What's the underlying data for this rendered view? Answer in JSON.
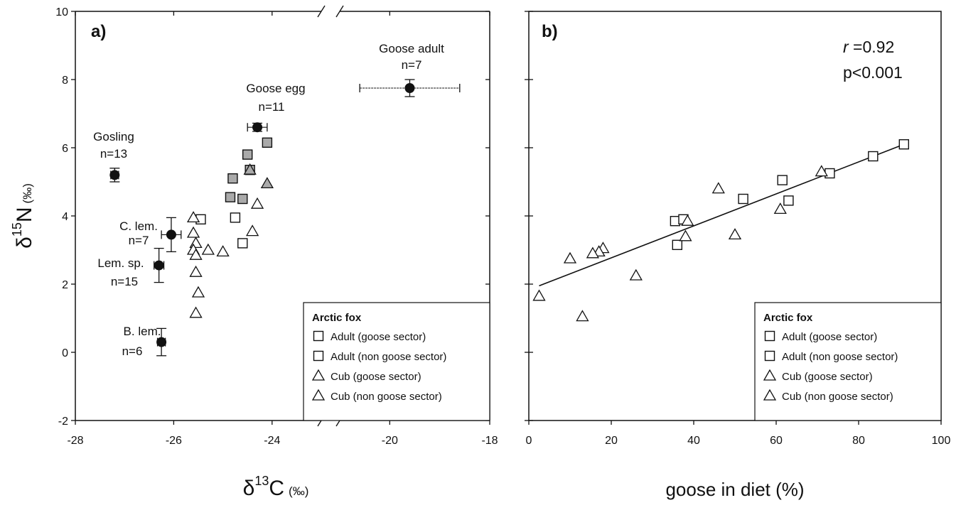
{
  "figure": {
    "axis_y_label_parts": {
      "prefix": "δ",
      "sup": "15",
      "main": "N",
      "unit": "(‰)"
    },
    "axis_x_label_a_parts": {
      "prefix": "δ",
      "sup": "13",
      "main": "C",
      "unit": "(‰)"
    },
    "axis_x_label_b": "goose in diet (%)"
  },
  "chart_data": [
    {
      "type": "scatter",
      "panel": "a)",
      "xlabel": "δ13C (‰)",
      "ylabel": "δ15N (‰)",
      "xlim": [
        -28,
        -18
      ],
      "x_axis_break_between": [
        -23,
        -21
      ],
      "ylim": [
        -2,
        10
      ],
      "xticks": [
        -28,
        -26,
        -24,
        -20,
        -18
      ],
      "yticks": [
        -2,
        0,
        2,
        4,
        6,
        8,
        10
      ],
      "prey": [
        {
          "label": "Goose adult",
          "n_label": "n=7",
          "x": -19.6,
          "y": 7.75,
          "xerr": 1.0,
          "yerr": 0.25
        },
        {
          "label": "Goose egg",
          "n_label": "n=11",
          "x": -24.3,
          "y": 6.6,
          "xerr": 0.2,
          "yerr": 0.12
        },
        {
          "label": "Gosling",
          "n_label": "n=13",
          "x": -27.2,
          "y": 5.2,
          "xerr": 0.08,
          "yerr": 0.2
        },
        {
          "label": "C. lem.",
          "n_label": "n=7",
          "x": -26.05,
          "y": 3.45,
          "xerr": 0.2,
          "yerr": 0.5
        },
        {
          "label": "Lem. sp.",
          "n_label": "n=15",
          "x": -26.3,
          "y": 2.55,
          "xerr": 0.1,
          "yerr": 0.5
        },
        {
          "label": "B. lem.",
          "n_label": "n=6",
          "x": -26.25,
          "y": 0.3,
          "xerr": 0.08,
          "yerr": 0.4
        }
      ],
      "series": [
        {
          "name": "Adult (goose sector)",
          "marker": "square",
          "fill": "#aaaaaa",
          "x": [
            -24.5,
            -24.8,
            -24.85,
            -24.6,
            -24.45,
            -24.1
          ],
          "y": [
            5.8,
            5.1,
            4.55,
            4.5,
            5.35,
            6.15
          ]
        },
        {
          "name": "Adult (non goose sector)",
          "marker": "square",
          "fill": "#ffffff",
          "x": [
            -25.45,
            -24.75,
            -24.6
          ],
          "y": [
            3.9,
            3.95,
            3.2
          ]
        },
        {
          "name": "Cub (goose sector)",
          "marker": "triangle",
          "fill": "#aaaaaa",
          "x": [
            -24.45,
            -24.1
          ],
          "y": [
            5.35,
            4.95
          ]
        },
        {
          "name": "Cub (non goose sector)",
          "marker": "triangle",
          "fill": "#ffffff",
          "x": [
            -25.6,
            -25.6,
            -25.55,
            -25.6,
            -25.55,
            -25.3,
            -25.0,
            -25.55,
            -25.5,
            -25.55,
            -24.3,
            -24.4
          ],
          "y": [
            3.95,
            3.5,
            3.2,
            3.0,
            2.85,
            3.0,
            2.95,
            2.35,
            1.75,
            1.15,
            4.35,
            3.55
          ]
        }
      ],
      "legend": {
        "title": "Arctic fox",
        "position": "lower-right"
      }
    },
    {
      "type": "scatter",
      "panel": "b)",
      "xlabel": "goose in diet (%)",
      "ylabel": "δ15N (‰)",
      "xlim": [
        0,
        100
      ],
      "ylim": [
        -2,
        10
      ],
      "xticks": [
        0,
        20,
        40,
        60,
        80,
        100
      ],
      "yticks": [
        -2,
        0,
        2,
        4,
        6,
        8,
        10
      ],
      "show_y_tick_labels": false,
      "annotation": {
        "r_symbol": "r",
        "r_value": " =0.92",
        "p": "p<0.001"
      },
      "regression_line": {
        "x": [
          2.5,
          91
        ],
        "y": [
          1.95,
          6.1
        ]
      },
      "series": [
        {
          "name": "Adult (goose sector)",
          "marker": "square",
          "fill": "#ffffff",
          "x": [
            61.5,
            63,
            52,
            73,
            83.5,
            91
          ],
          "y": [
            5.05,
            4.45,
            4.5,
            5.25,
            5.75,
            6.1
          ]
        },
        {
          "name": "Adult (non goose sector)",
          "marker": "square",
          "fill": "#ffffff",
          "x": [
            35.5,
            37.5,
            36
          ],
          "y": [
            3.85,
            3.9,
            3.15
          ]
        },
        {
          "name": "Cub (goose sector)",
          "marker": "triangle",
          "fill": "#ffffff",
          "x": [
            71,
            61
          ],
          "y": [
            5.3,
            4.2
          ]
        },
        {
          "name": "Cub (non goose sector)",
          "marker": "triangle",
          "fill": "#ffffff",
          "x": [
            46,
            38.5,
            38,
            50,
            26,
            18,
            17,
            15.5,
            10,
            2.5,
            13
          ],
          "y": [
            4.8,
            3.85,
            3.4,
            3.45,
            2.25,
            3.05,
            2.95,
            2.9,
            2.75,
            1.65,
            1.05
          ]
        }
      ],
      "legend": {
        "title": "Arctic fox",
        "position": "lower-right"
      }
    }
  ]
}
